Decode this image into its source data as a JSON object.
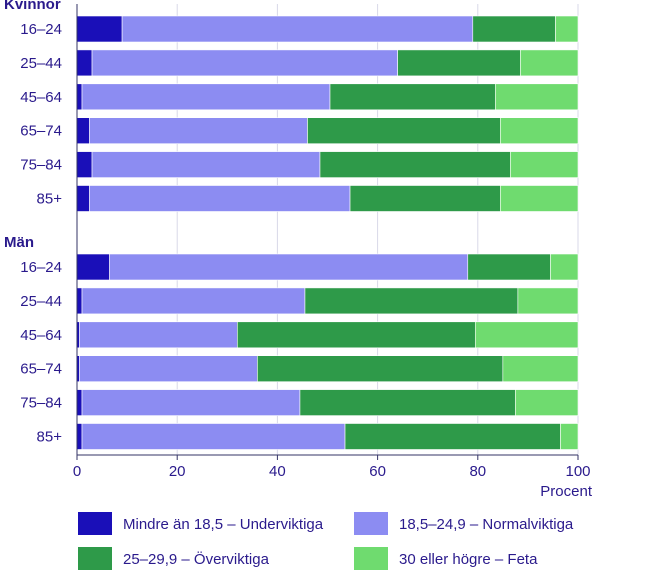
{
  "chart_data": {
    "type": "bar",
    "orientation": "horizontal",
    "stacked": true,
    "xlabel": "Procent",
    "xlim": [
      0,
      100
    ],
    "xticks": [
      0,
      20,
      40,
      60,
      80,
      100
    ],
    "grid": true,
    "legend_position": "bottom",
    "groups": [
      {
        "name": "Kvinnor",
        "categories": [
          "16–24",
          "25–44",
          "45–64",
          "65–74",
          "75–84",
          "85+"
        ],
        "series": [
          {
            "name": "Mindre än 18,5 – Underviktiga",
            "values": [
              9,
              3,
              1,
              2.5,
              3,
              2.5
            ]
          },
          {
            "name": "18,5–24,9 – Normalviktiga",
            "values": [
              70,
              61,
              49.5,
              43.5,
              45.5,
              52
            ]
          },
          {
            "name": "25–29,9 – Överviktiga",
            "values": [
              16.5,
              24.5,
              33,
              38.5,
              38,
              30
            ]
          },
          {
            "name": "30 eller högre – Feta",
            "values": [
              4.5,
              11.5,
              16.5,
              15.5,
              13.5,
              15.5
            ]
          }
        ]
      },
      {
        "name": "Män",
        "categories": [
          "16–24",
          "25–44",
          "45–64",
          "65–74",
          "75–84",
          "85+"
        ],
        "series": [
          {
            "name": "Mindre än 18,5 – Underviktiga",
            "values": [
              6.5,
              1,
              0.5,
              0.5,
              1,
              1
            ]
          },
          {
            "name": "18,5–24,9 – Normalviktiga",
            "values": [
              71.5,
              44.5,
              31.5,
              35.5,
              43.5,
              52.5
            ]
          },
          {
            "name": "25–29,9 – Överviktiga",
            "values": [
              16.5,
              42.5,
              47.5,
              49,
              43,
              43
            ]
          },
          {
            "name": "30 eller högre – Feta",
            "values": [
              5.5,
              12,
              20.5,
              15,
              12.5,
              3.5
            ]
          }
        ]
      }
    ],
    "colors": [
      "#1a0fb8",
      "#8c8cf2",
      "#2e9a49",
      "#6fdb6f"
    ]
  }
}
